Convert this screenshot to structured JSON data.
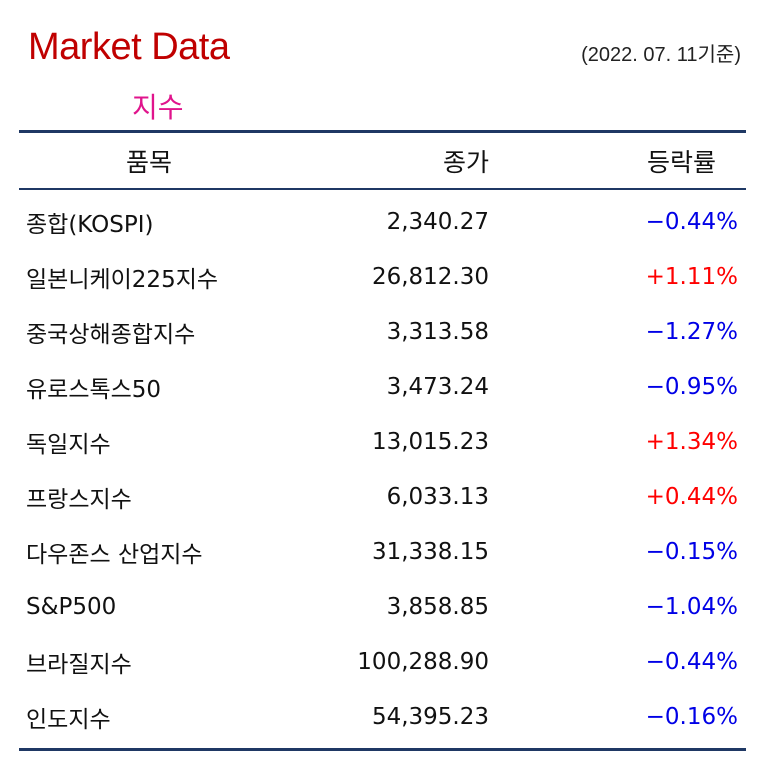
{
  "header": {
    "title": "Market Data",
    "date": "(2022. 07. 11기준)",
    "subtitle": "지수"
  },
  "table": {
    "columns": [
      "품목",
      "종가",
      "등락률"
    ],
    "rows": [
      {
        "name": "종합(KOSPI)",
        "close": "2,340.27",
        "change": "−0.44%",
        "direction": "down"
      },
      {
        "name": "일본니케이225지수",
        "close": "26,812.30",
        "change": "+1.11%",
        "direction": "up"
      },
      {
        "name": "중국상해종합지수",
        "close": "3,313.58",
        "change": "−1.27%",
        "direction": "down"
      },
      {
        "name": "유로스톡스50",
        "close": "3,473.24",
        "change": "−0.95%",
        "direction": "down"
      },
      {
        "name": "독일지수",
        "close": "13,015.23",
        "change": "+1.34%",
        "direction": "up"
      },
      {
        "name": "프랑스지수",
        "close": "6,033.13",
        "change": "+0.44%",
        "direction": "up"
      },
      {
        "name": "다우존스 산업지수",
        "close": "31,338.15",
        "change": "−0.15%",
        "direction": "down"
      },
      {
        "name": "S&P500",
        "close": "3,858.85",
        "change": "−1.04%",
        "direction": "down"
      },
      {
        "name": "브라질지수",
        "close": "100,288.90",
        "change": "−0.44%",
        "direction": "down"
      },
      {
        "name": "인도지수",
        "close": "54,395.23",
        "change": "−0.16%",
        "direction": "down"
      }
    ]
  },
  "colors": {
    "title": "#c00000",
    "subtitle": "#e0148c",
    "rule": "#1f3864",
    "up": "#ff0000",
    "down": "#0000e6"
  }
}
